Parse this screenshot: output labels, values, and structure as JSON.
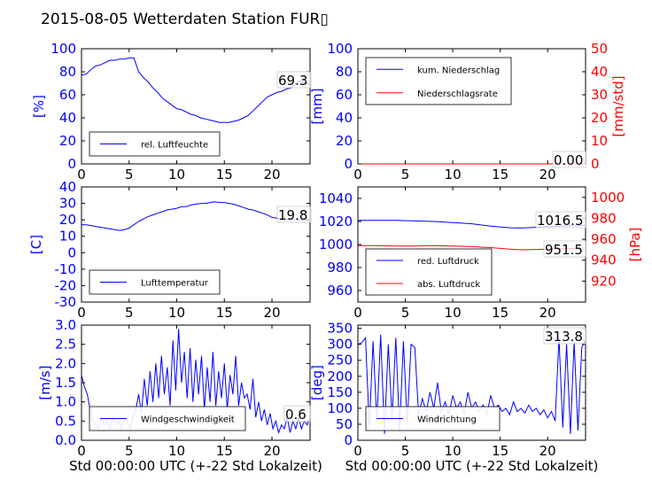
{
  "figure": {
    "title": "2015-08-05 Wetterdaten Station FUR▯"
  },
  "colors": {
    "blue": "#0000ff",
    "red": "#ff0000",
    "light_blue": "#8080ff"
  },
  "chart_data": [
    {
      "type": "line",
      "ylabel": "[%]",
      "xlim": [
        0,
        24
      ],
      "ylim": [
        0,
        100
      ],
      "yticks": [
        0,
        20,
        40,
        60,
        80,
        100
      ],
      "xticks": [
        0,
        5,
        10,
        15,
        20
      ],
      "last_value_label": "69.3",
      "legend": {
        "position": "lower-left",
        "entries": [
          "rel. Luftfeuchte"
        ]
      },
      "series": [
        {
          "name": "rel. Luftfeuchte",
          "color": "#0000ff",
          "x": [
            0,
            0.5,
            1,
            1.5,
            2,
            2.5,
            3,
            3.5,
            4,
            4.5,
            5,
            5.5,
            5.8,
            6,
            6.5,
            7,
            7.5,
            8,
            8.5,
            9,
            9.5,
            10,
            10.5,
            11,
            11.5,
            12,
            12.5,
            13,
            13.5,
            14,
            14.5,
            15,
            15.5,
            16,
            16.5,
            17,
            17.5,
            18,
            18.5,
            19,
            19.5,
            20,
            20.5,
            21,
            21.5,
            22,
            22.5,
            23,
            23.5,
            24
          ],
          "y": [
            77,
            78,
            82,
            85,
            86,
            88,
            90,
            90,
            91,
            91,
            92,
            92,
            85,
            80,
            75,
            71,
            66,
            62,
            57,
            54,
            51,
            48,
            47,
            45,
            43,
            42,
            40,
            39,
            38,
            37,
            36,
            36,
            36,
            37,
            38,
            40,
            42,
            46,
            50,
            54,
            58,
            60,
            62,
            63,
            65,
            66,
            70,
            72,
            70,
            69
          ]
        }
      ]
    },
    {
      "type": "line",
      "ylabel": "[mm]",
      "ylabel_right": "[mm/std]",
      "xlim": [
        0,
        24
      ],
      "ylim": [
        0,
        100
      ],
      "ylim_right": [
        0,
        50
      ],
      "yticks": [
        0,
        20,
        40,
        60,
        80,
        100
      ],
      "yticks_right": [
        0,
        10,
        20,
        30,
        40,
        50
      ],
      "xticks": [
        0,
        5,
        10,
        15,
        20
      ],
      "last_value_label": "0.00",
      "legend": {
        "position": "upper-left",
        "entries": [
          "kum. Niederschlag",
          "Niederschlagsrate"
        ]
      },
      "series": [
        {
          "name": "kum. Niederschlag",
          "color": "#0000ff",
          "axis": "left",
          "x": [
            0,
            24
          ],
          "y": [
            0,
            0
          ]
        },
        {
          "name": "Niederschlagsrate",
          "color": "#ff0000",
          "axis": "right",
          "x": [
            0,
            24
          ],
          "y": [
            0,
            0
          ]
        }
      ]
    },
    {
      "type": "line",
      "ylabel": "[C]",
      "xlim": [
        0,
        24
      ],
      "ylim": [
        -30,
        40
      ],
      "yticks": [
        -30,
        -20,
        -10,
        0,
        10,
        20,
        30,
        40
      ],
      "xticks": [
        0,
        5,
        10,
        15,
        20
      ],
      "last_value_label": "19.8",
      "legend": {
        "position": "lower-left",
        "entries": [
          "Lufttemperatur"
        ]
      },
      "series": [
        {
          "name": "Lufttemperatur",
          "color": "#0000ff",
          "x": [
            0,
            0.5,
            1,
            1.5,
            2,
            2.5,
            3,
            3.5,
            4,
            4.5,
            5,
            5.5,
            6,
            6.5,
            7,
            7.5,
            8,
            8.5,
            9,
            9.5,
            10,
            10.5,
            11,
            11.5,
            12,
            12.5,
            13,
            13.5,
            14,
            14.5,
            15,
            15.5,
            16,
            16.5,
            17,
            17.5,
            18,
            18.5,
            19,
            19.5,
            20,
            20.5,
            21,
            21.5,
            22,
            22.5,
            23,
            23.5,
            24
          ],
          "y": [
            17,
            17,
            16.5,
            16,
            15.5,
            15,
            14.5,
            14,
            13.5,
            14,
            15,
            17,
            19,
            20.5,
            22,
            23,
            24,
            25,
            26,
            26.5,
            27,
            28,
            28,
            29,
            29.5,
            30,
            30,
            30.5,
            31,
            30.5,
            30.5,
            30,
            29.5,
            28.5,
            27.5,
            26.5,
            26,
            25,
            24,
            23,
            21.5,
            21,
            20.5,
            20.5,
            20.5,
            20,
            20,
            19.8,
            19.8
          ]
        }
      ]
    },
    {
      "type": "line",
      "ylabel_right": "[hPa]",
      "xlim": [
        0,
        24
      ],
      "ylim": [
        950,
        1050
      ],
      "ylim_right": [
        900,
        1010
      ],
      "yticks": [
        960,
        980,
        1000,
        1020,
        1040
      ],
      "yticks_right": [
        920,
        940,
        960,
        980,
        1000
      ],
      "xticks": [
        0,
        5,
        10,
        15,
        20
      ],
      "value_labels": [
        "1016.5",
        "951.5"
      ],
      "legend": {
        "position": "lower-left",
        "entries": [
          "red. Luftdruck",
          "abs. Luftdruck"
        ]
      },
      "series": [
        {
          "name": "red. Luftdruck",
          "color": "#0000ff",
          "axis": "left",
          "x": [
            0,
            2,
            4,
            6,
            8,
            10,
            12,
            14,
            16,
            17,
            18,
            20,
            22,
            24
          ],
          "y": [
            1021,
            1021,
            1021,
            1020.5,
            1020,
            1019,
            1018,
            1016,
            1014.5,
            1014.3,
            1014.6,
            1015.5,
            1016.2,
            1016.5
          ]
        },
        {
          "name": "abs. Luftdruck",
          "color": "#ff0000",
          "axis": "right",
          "x": [
            0,
            2,
            4,
            6,
            8,
            10,
            12,
            14,
            16,
            17,
            18,
            20,
            22,
            24
          ],
          "y": [
            954,
            954,
            953.5,
            953.5,
            954,
            953.5,
            953,
            952,
            950.5,
            950,
            950,
            950.5,
            951,
            951.5
          ]
        }
      ]
    },
    {
      "type": "line",
      "ylabel": "[m/s]",
      "xlabel": "Std 00:00:00 UTC (+-22 Std Lokalzeit)",
      "xlim": [
        0,
        24
      ],
      "ylim": [
        0,
        3
      ],
      "yticks": [
        0.0,
        0.5,
        1.0,
        1.5,
        2.0,
        2.5,
        3.0
      ],
      "xticks": [
        0,
        5,
        10,
        15,
        20
      ],
      "last_value_label": "0.6",
      "legend": {
        "position": "lower-left",
        "entries": [
          "Windgeschwindigkeit"
        ]
      },
      "series": [
        {
          "name": "Windgeschwindigkeit",
          "color": "#0000ff",
          "x": [
            0,
            0.3,
            0.6,
            0.9,
            1.2,
            1.5,
            1.8,
            2.1,
            2.4,
            2.7,
            3.0,
            3.3,
            3.6,
            3.9,
            4.2,
            4.5,
            4.8,
            5.1,
            5.4,
            5.7,
            6.0,
            6.3,
            6.6,
            6.9,
            7.2,
            7.5,
            7.8,
            8.1,
            8.4,
            8.7,
            9.0,
            9.3,
            9.6,
            9.9,
            10.2,
            10.5,
            10.8,
            11.1,
            11.4,
            11.7,
            12.0,
            12.3,
            12.6,
            12.9,
            13.2,
            13.5,
            13.8,
            14.1,
            14.4,
            14.7,
            15.0,
            15.3,
            15.6,
            15.9,
            16.2,
            16.5,
            16.8,
            17.1,
            17.4,
            17.7,
            18.0,
            18.3,
            18.6,
            18.9,
            19.2,
            19.5,
            19.8,
            20.1,
            20.4,
            20.7,
            21.0,
            21.3,
            21.6,
            21.9,
            22.2,
            22.5,
            22.8,
            23.1,
            23.4,
            23.7,
            24.0
          ],
          "y": [
            1.7,
            1.4,
            1.2,
            0.8,
            0.5,
            0.4,
            0.3,
            0.6,
            0.4,
            0.5,
            0.3,
            0.6,
            0.4,
            0.5,
            0.3,
            0.6,
            0.5,
            0.3,
            0.6,
            0.8,
            1.2,
            0.7,
            1.6,
            0.9,
            1.8,
            1.0,
            2.0,
            1.1,
            2.2,
            1.2,
            1.9,
            0.9,
            2.6,
            1.3,
            2.9,
            1.5,
            2.3,
            1.1,
            2.4,
            1.0,
            2.1,
            1.2,
            2.2,
            0.8,
            1.9,
            1.0,
            2.3,
            0.9,
            1.8,
            1.1,
            2.0,
            0.8,
            1.7,
            1.2,
            2.2,
            0.9,
            1.5,
            1.1,
            1.2,
            0.8,
            1.6,
            0.6,
            1.0,
            0.5,
            0.8,
            0.4,
            0.7,
            0.3,
            0.5,
            0.2,
            0.4,
            0.3,
            0.6,
            0.2,
            0.5,
            0.3,
            0.6,
            0.3,
            0.5,
            0.4,
            0.6
          ]
        }
      ]
    },
    {
      "type": "line",
      "ylabel": "[deg]",
      "xlabel": "Std 00:00:00 UTC (+-22 Std Lokalzeit)",
      "xlim": [
        0,
        24
      ],
      "ylim": [
        0,
        360
      ],
      "yticks": [
        0,
        50,
        100,
        150,
        200,
        250,
        300,
        350
      ],
      "xticks": [
        0,
        5,
        10,
        15,
        20
      ],
      "last_value_label": "313.8",
      "legend": {
        "position": "lower-left",
        "entries": [
          "Windrichtung"
        ]
      },
      "series": [
        {
          "name": "Windrichtung",
          "color": "#0000ff",
          "x": [
            0,
            0.4,
            0.8,
            1.2,
            1.6,
            2.0,
            2.4,
            2.8,
            3.2,
            3.6,
            4.0,
            4.4,
            4.8,
            5.2,
            5.6,
            6.0,
            6.4,
            6.8,
            7.2,
            7.6,
            8.0,
            8.4,
            8.8,
            9.2,
            9.6,
            10.0,
            10.4,
            10.8,
            11.2,
            11.6,
            12.0,
            12.4,
            12.8,
            13.2,
            13.6,
            14.0,
            14.4,
            14.8,
            15.2,
            15.6,
            16.0,
            16.4,
            16.8,
            17.2,
            17.6,
            18.0,
            18.4,
            18.8,
            19.2,
            19.6,
            20.0,
            20.4,
            20.8,
            21.2,
            21.6,
            22.0,
            22.4,
            22.8,
            23.2,
            23.6,
            24.0
          ],
          "y": [
            300,
            305,
            320,
            40,
            310,
            60,
            330,
            20,
            300,
            70,
            320,
            30,
            310,
            50,
            300,
            290,
            80,
            130,
            90,
            150,
            100,
            180,
            90,
            120,
            80,
            140,
            100,
            120,
            80,
            150,
            100,
            120,
            90,
            110,
            80,
            140,
            100,
            110,
            90,
            100,
            80,
            120,
            90,
            100,
            85,
            110,
            90,
            100,
            80,
            95,
            70,
            90,
            60,
            320,
            40,
            300,
            20,
            310,
            30,
            290,
            314
          ]
        }
      ]
    }
  ]
}
